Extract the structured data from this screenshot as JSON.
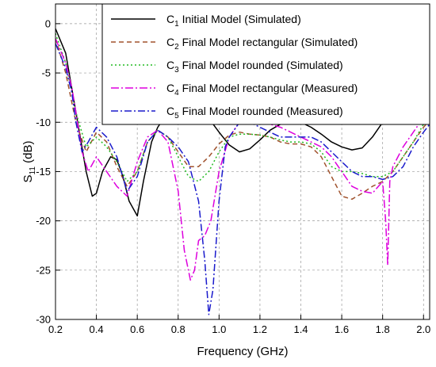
{
  "chart_data": {
    "type": "line",
    "xlabel": "Frequency (GHz)",
    "ylabel": {
      "main": "S",
      "sub": "11",
      "unit": " (dB)"
    },
    "xlim": [
      0.2,
      2.03
    ],
    "ylim": [
      -30,
      2
    ],
    "x_ticks": [
      0.2,
      0.4,
      0.6,
      0.8,
      1.0,
      1.2,
      1.4,
      1.6,
      1.8,
      2.0
    ],
    "x_tick_labels": [
      "0.2",
      "0.4",
      "0.6",
      "0.8",
      "1.0",
      "1.2",
      "1.4",
      "1.6",
      "1.8",
      "2.0"
    ],
    "y_ticks": [
      0,
      -5,
      -10,
      -15,
      -20,
      -25,
      -30
    ],
    "y_tick_labels": [
      "0",
      "-5",
      "-10",
      "-15",
      "-20",
      "-25",
      "-30"
    ],
    "grid": true,
    "legend_position": "top-right",
    "series": [
      {
        "name": {
          "main": "C",
          "sub": "1",
          "rest": " Initial Model (Simulated)"
        },
        "color": "#000000",
        "dash": "",
        "x": [
          0.2,
          0.25,
          0.3,
          0.35,
          0.38,
          0.4,
          0.43,
          0.47,
          0.5,
          0.53,
          0.56,
          0.6,
          0.63,
          0.67,
          0.7,
          0.75,
          0.8,
          0.85,
          0.9,
          0.95,
          1.0,
          1.05,
          1.1,
          1.15,
          1.2,
          1.25,
          1.3,
          1.35,
          1.4,
          1.45,
          1.5,
          1.55,
          1.6,
          1.65,
          1.7,
          1.75,
          1.8,
          1.85,
          1.9,
          1.95,
          2.0,
          2.03
        ],
        "y": [
          -0.5,
          -3,
          -9,
          -15,
          -17.5,
          -17.2,
          -15,
          -13.5,
          -13.8,
          -15.5,
          -18,
          -19.5,
          -16,
          -12,
          -10.5,
          -9,
          -7.8,
          -7.8,
          -8.5,
          -9.6,
          -11,
          -12.3,
          -13,
          -12.7,
          -11.8,
          -10.8,
          -10.2,
          -9.9,
          -10,
          -10.5,
          -11.2,
          -12,
          -12.5,
          -12.8,
          -12.6,
          -11.5,
          -10,
          -8.6,
          -7.8,
          -7.5,
          -7.4,
          -7.4
        ]
      },
      {
        "name": {
          "main": "C",
          "sub": "2",
          "rest": " Final Model rectangular (Simulated)"
        },
        "color": "#a0522d",
        "dash": "6,4",
        "x": [
          0.2,
          0.25,
          0.3,
          0.35,
          0.4,
          0.45,
          0.5,
          0.55,
          0.6,
          0.65,
          0.7,
          0.75,
          0.8,
          0.85,
          0.9,
          0.95,
          1.0,
          1.05,
          1.1,
          1.15,
          1.2,
          1.25,
          1.3,
          1.35,
          1.4,
          1.45,
          1.5,
          1.55,
          1.6,
          1.65,
          1.7,
          1.75,
          1.8,
          1.85,
          1.9,
          1.95,
          2.0,
          2.03
        ],
        "y": [
          -1.5,
          -5,
          -10,
          -13,
          -11,
          -12,
          -14.5,
          -16.5,
          -15,
          -12,
          -10.8,
          -11.5,
          -13,
          -14.5,
          -14.5,
          -13.5,
          -12.2,
          -11.3,
          -11,
          -11.2,
          -11.3,
          -11.5,
          -12,
          -12.2,
          -12.2,
          -12.5,
          -13.5,
          -15.5,
          -17.5,
          -17.8,
          -17.2,
          -16.5,
          -16,
          -15,
          -13.5,
          -12,
          -10.5,
          -9.8
        ]
      },
      {
        "name": {
          "main": "C",
          "sub": "3",
          "rest": " Final Model rounded (Simulated)"
        },
        "color": "#22bb22",
        "dash": "2,3",
        "x": [
          0.2,
          0.25,
          0.3,
          0.35,
          0.4,
          0.45,
          0.5,
          0.55,
          0.6,
          0.65,
          0.7,
          0.75,
          0.8,
          0.85,
          0.9,
          0.95,
          1.0,
          1.05,
          1.1,
          1.15,
          1.2,
          1.25,
          1.3,
          1.35,
          1.4,
          1.45,
          1.5,
          1.55,
          1.6,
          1.65,
          1.7,
          1.75,
          1.8,
          1.85,
          1.9,
          1.95,
          2.0,
          2.03
        ],
        "y": [
          -1,
          -4,
          -9,
          -12.5,
          -11.5,
          -12.5,
          -14,
          -16,
          -15,
          -12,
          -10.8,
          -11.5,
          -13.5,
          -15.5,
          -16,
          -15,
          -13,
          -11.5,
          -11.2,
          -11.2,
          -11.3,
          -11.5,
          -11.8,
          -12,
          -12,
          -12.2,
          -13,
          -14.5,
          -15,
          -15,
          -15.2,
          -15.5,
          -15.5,
          -15,
          -13.5,
          -12,
          -10.2,
          -9.5
        ]
      },
      {
        "name": {
          "main": "C",
          "sub": "4",
          "rest": " Final Model rectangular (Measured)"
        },
        "color": "#dd00dd",
        "dash": "10,3,2,3",
        "x": [
          0.2,
          0.25,
          0.28,
          0.3,
          0.33,
          0.36,
          0.4,
          0.45,
          0.5,
          0.55,
          0.6,
          0.65,
          0.7,
          0.75,
          0.8,
          0.83,
          0.86,
          0.88,
          0.9,
          0.93,
          0.96,
          1.0,
          1.05,
          1.1,
          1.15,
          1.2,
          1.25,
          1.3,
          1.35,
          1.4,
          1.45,
          1.5,
          1.55,
          1.6,
          1.65,
          1.7,
          1.75,
          1.8,
          1.815,
          1.825,
          1.835,
          1.85,
          1.9,
          1.95,
          2.0,
          2.03
        ],
        "y": [
          -1.5,
          -4,
          -6.5,
          -9,
          -13,
          -15,
          -13.5,
          -15,
          -16.5,
          -17.5,
          -14,
          -11.5,
          -10.8,
          -12,
          -17,
          -23,
          -26,
          -25,
          -22,
          -21.5,
          -20,
          -15,
          -11.5,
          -10,
          -9.5,
          -10,
          -10.2,
          -10.5,
          -11,
          -11.5,
          -12,
          -12.5,
          -13.5,
          -15,
          -16.5,
          -17,
          -17.2,
          -16,
          -20,
          -24.5,
          -16,
          -14.5,
          -12.5,
          -11,
          -9.5,
          -8.8
        ]
      },
      {
        "name": {
          "main": "C",
          "sub": "5",
          "rest": " Final Model rounded (Measured)"
        },
        "color": "#1a1acc",
        "dash": "9,3,2,3",
        "x": [
          0.2,
          0.25,
          0.28,
          0.3,
          0.33,
          0.36,
          0.4,
          0.45,
          0.5,
          0.55,
          0.6,
          0.65,
          0.7,
          0.75,
          0.8,
          0.85,
          0.9,
          0.93,
          0.95,
          0.97,
          1.0,
          1.03,
          1.05,
          1.1,
          1.15,
          1.2,
          1.25,
          1.3,
          1.35,
          1.4,
          1.45,
          1.5,
          1.55,
          1.6,
          1.65,
          1.7,
          1.75,
          1.8,
          1.85,
          1.9,
          1.95,
          2.0,
          2.03
        ],
        "y": [
          -2,
          -4.5,
          -7,
          -10,
          -13,
          -12,
          -10.5,
          -11.5,
          -13.5,
          -17,
          -15.5,
          -12,
          -10.8,
          -11.5,
          -12.5,
          -14,
          -18,
          -24,
          -29.5,
          -27,
          -18,
          -12.5,
          -11.5,
          -10,
          -10,
          -10.5,
          -11,
          -11.5,
          -11.5,
          -11.5,
          -11.5,
          -12,
          -13,
          -14,
          -15,
          -15.5,
          -15.5,
          -15.8,
          -15.5,
          -14.5,
          -12.5,
          -11,
          -10.2
        ]
      }
    ]
  }
}
